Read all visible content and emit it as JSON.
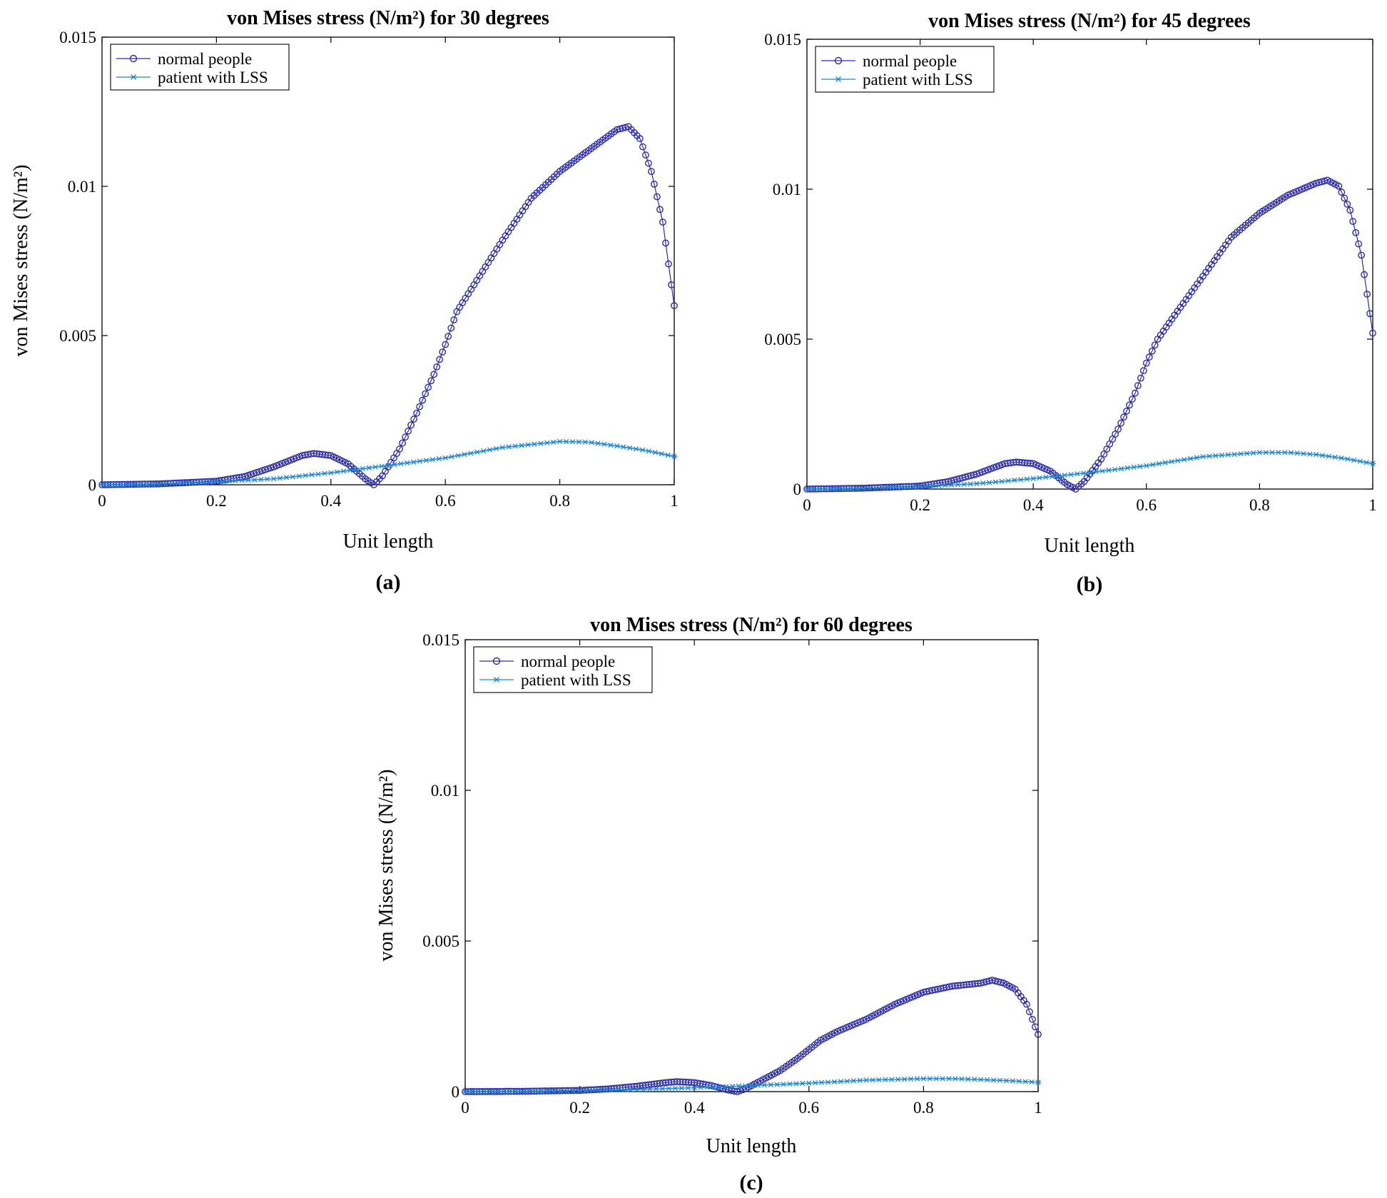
{
  "colors": {
    "normal": "#2c2ca8",
    "lss": "#1f86d1",
    "axis": "#000000",
    "background": "#ffffff"
  },
  "chart_data": [
    {
      "type": "line",
      "panel_label": "(a)",
      "title": "von Mises stress (N/m²) for 30 degrees",
      "xlabel": "Unit length",
      "ylabel": "von Mises stress (N/m²)",
      "xlim": [
        0,
        1
      ],
      "ylim": [
        0,
        0.015
      ],
      "xticks": [
        "0",
        "0.2",
        "0.4",
        "0.6",
        "0.8",
        "1"
      ],
      "yticks": [
        "0",
        "0.005",
        "0.01",
        "0.015"
      ],
      "legend_position": "top-left",
      "series": [
        {
          "name": "normal people",
          "marker": "circle",
          "x": [
            0,
            0.1,
            0.2,
            0.25,
            0.3,
            0.35,
            0.37,
            0.4,
            0.43,
            0.46,
            0.475,
            0.49,
            0.52,
            0.55,
            0.58,
            0.6,
            0.62,
            0.65,
            0.7,
            0.75,
            0.8,
            0.85,
            0.9,
            0.92,
            0.94,
            0.96,
            0.98,
            1.0
          ],
          "y": [
            0,
            3e-05,
            0.00012,
            0.00028,
            0.0006,
            0.00098,
            0.00105,
            0.00098,
            0.0007,
            0.0002,
            0.0,
            0.0003,
            0.0012,
            0.0024,
            0.0037,
            0.0047,
            0.0058,
            0.0067,
            0.0082,
            0.0096,
            0.0105,
            0.0112,
            0.0119,
            0.012,
            0.0116,
            0.0105,
            0.0088,
            0.006
          ]
        },
        {
          "name": "patient with LSS",
          "marker": "star",
          "x": [
            0,
            0.1,
            0.2,
            0.3,
            0.4,
            0.5,
            0.6,
            0.7,
            0.8,
            0.85,
            0.9,
            0.95,
            1.0
          ],
          "y": [
            0,
            2e-05,
            0.0001,
            0.0002,
            0.0004,
            0.00065,
            0.0009,
            0.00125,
            0.00145,
            0.00143,
            0.0013,
            0.00115,
            0.00095
          ]
        }
      ]
    },
    {
      "type": "line",
      "panel_label": "(b)",
      "title": "von Mises stress (N/m²) for 45 degrees",
      "xlabel": "Unit length",
      "ylabel": "von Mises stress (N/m²)",
      "xlim": [
        0,
        1
      ],
      "ylim": [
        0,
        0.015
      ],
      "xticks": [
        "0",
        "0.2",
        "0.4",
        "0.6",
        "0.8",
        "1"
      ],
      "yticks": [
        "0",
        "0.005",
        "0.01",
        "0.015"
      ],
      "legend_position": "top-left",
      "series": [
        {
          "name": "normal people",
          "marker": "circle",
          "x": [
            0,
            0.1,
            0.2,
            0.25,
            0.3,
            0.35,
            0.37,
            0.4,
            0.43,
            0.46,
            0.475,
            0.49,
            0.52,
            0.55,
            0.58,
            0.6,
            0.62,
            0.65,
            0.7,
            0.75,
            0.8,
            0.85,
            0.9,
            0.92,
            0.94,
            0.96,
            0.98,
            1.0
          ],
          "y": [
            0,
            3e-05,
            0.0001,
            0.00025,
            0.0005,
            0.00085,
            0.0009,
            0.00085,
            0.0006,
            0.00015,
            0.0,
            0.00025,
            0.001,
            0.002,
            0.0032,
            0.0042,
            0.005,
            0.0058,
            0.0071,
            0.0084,
            0.0092,
            0.0098,
            0.0102,
            0.0103,
            0.0101,
            0.0093,
            0.0078,
            0.0052
          ]
        },
        {
          "name": "patient with LSS",
          "marker": "star",
          "x": [
            0,
            0.1,
            0.2,
            0.3,
            0.4,
            0.5,
            0.6,
            0.7,
            0.8,
            0.85,
            0.9,
            0.95,
            1.0
          ],
          "y": [
            0,
            2e-05,
            8e-05,
            0.00018,
            0.00035,
            0.00055,
            0.00078,
            0.00108,
            0.00122,
            0.00122,
            0.00115,
            0.00102,
            0.00085
          ]
        }
      ]
    },
    {
      "type": "line",
      "panel_label": "(c)",
      "title": "von Mises stress (N/m²) for 60 degrees",
      "xlabel": "Unit length",
      "ylabel": "von Mises stress (N/m²)",
      "xlim": [
        0,
        1
      ],
      "ylim": [
        0,
        0.015
      ],
      "xticks": [
        "0",
        "0.2",
        "0.4",
        "0.6",
        "0.8",
        "1"
      ],
      "yticks": [
        "0",
        "0.005",
        "0.01",
        "0.015"
      ],
      "legend_position": "top-left",
      "series": [
        {
          "name": "normal people",
          "marker": "circle",
          "x": [
            0,
            0.1,
            0.2,
            0.25,
            0.3,
            0.35,
            0.37,
            0.4,
            0.43,
            0.46,
            0.475,
            0.49,
            0.52,
            0.55,
            0.58,
            0.6,
            0.62,
            0.65,
            0.7,
            0.75,
            0.8,
            0.85,
            0.9,
            0.92,
            0.94,
            0.96,
            0.98,
            1.0
          ],
          "y": [
            0,
            1e-05,
            4e-05,
            9e-05,
            0.00018,
            0.0003,
            0.00033,
            0.0003,
            0.0002,
            5e-05,
            0.0,
            0.0001,
            0.0004,
            0.0007,
            0.0011,
            0.0014,
            0.0017,
            0.002,
            0.0024,
            0.0029,
            0.0033,
            0.0035,
            0.0036,
            0.0037,
            0.0036,
            0.0034,
            0.0029,
            0.0019
          ]
        },
        {
          "name": "patient with LSS",
          "marker": "star",
          "x": [
            0,
            0.1,
            0.2,
            0.3,
            0.4,
            0.5,
            0.6,
            0.7,
            0.8,
            0.85,
            0.9,
            0.95,
            1.0
          ],
          "y": [
            0,
            1e-05,
            3e-05,
            7e-05,
            0.00013,
            0.0002,
            0.00028,
            0.00038,
            0.00043,
            0.00043,
            0.0004,
            0.00036,
            0.00031
          ]
        }
      ]
    }
  ]
}
